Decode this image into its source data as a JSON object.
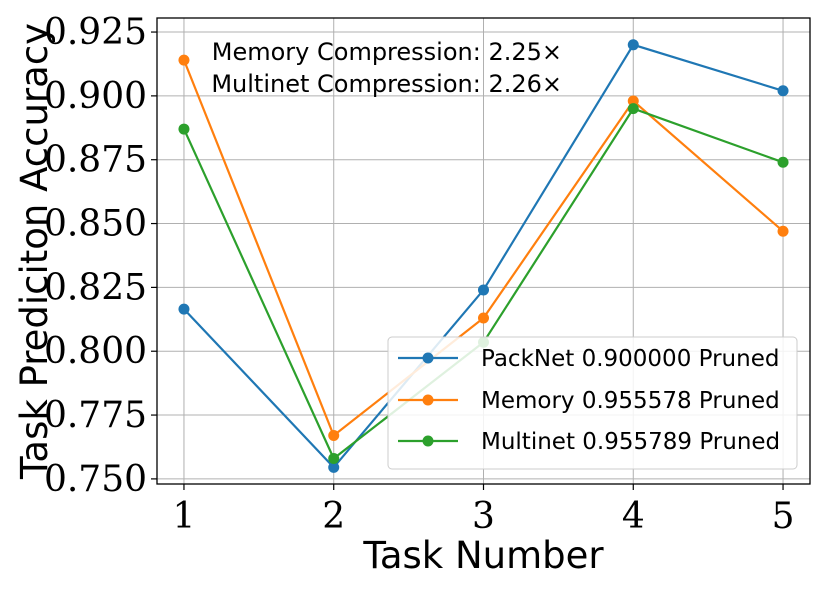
{
  "chart_data": {
    "type": "line",
    "xlabel": "Task Number",
    "ylabel": "Task Prediciton Accuracy",
    "x": [
      1,
      2,
      3,
      4,
      5
    ],
    "xticks": [
      "1",
      "2",
      "3",
      "4",
      "5"
    ],
    "xlim": [
      0.82,
      5.18
    ],
    "yticks": [
      0.75,
      0.775,
      0.8,
      0.825,
      0.85,
      0.875,
      0.9,
      0.925
    ],
    "ytick_labels": [
      "0.750",
      "0.775",
      "0.800",
      "0.825",
      "0.850",
      "0.875",
      "0.900",
      "0.925"
    ],
    "ylim": [
      0.748,
      0.9305
    ],
    "grid": true,
    "legend_position": "lower-right",
    "annotations": [
      "Memory Compression: 2.25×",
      "Multinet Compression: 2.26×"
    ],
    "series": [
      {
        "name": "PackNet 0.900000 Pruned",
        "color": "#1f77b4",
        "values": [
          0.8165,
          0.7545,
          0.824,
          0.92,
          0.902
        ]
      },
      {
        "name": "Memory 0.955578 Pruned",
        "color": "#ff7f0e",
        "values": [
          0.914,
          0.767,
          0.813,
          0.898,
          0.847
        ]
      },
      {
        "name": "Multinet 0.955789 Pruned",
        "color": "#2ca02c",
        "values": [
          0.887,
          0.758,
          0.8035,
          0.895,
          0.874
        ]
      }
    ]
  }
}
